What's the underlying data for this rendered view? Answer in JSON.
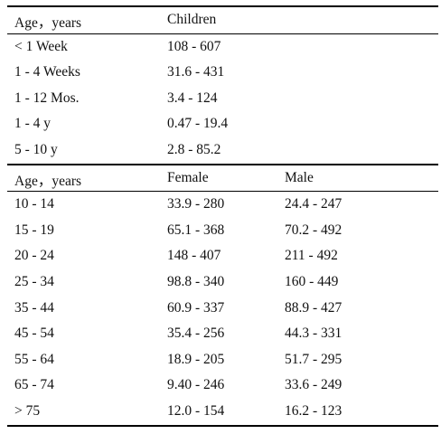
{
  "children_section": {
    "headers": {
      "age": "Age，years",
      "children": "Children"
    },
    "rows": [
      {
        "age": "< 1 Week",
        "children": "108 - 607"
      },
      {
        "age": "1 - 4 Weeks",
        "children": "31.6 - 431"
      },
      {
        "age": "1 - 12 Mos.",
        "children": "3.4 - 124"
      },
      {
        "age": "1 - 4 y",
        "children": "0.47 - 19.4"
      },
      {
        "age": "5 - 10 y",
        "children": "2.8 - 85.2"
      }
    ]
  },
  "adult_section": {
    "headers": {
      "age": "Age，years",
      "female": "Female",
      "male": "Male"
    },
    "rows": [
      {
        "age": "10 - 14",
        "female": "33.9 - 280",
        "male": "24.4 - 247"
      },
      {
        "age": "15 - 19",
        "female": "65.1 - 368",
        "male": "70.2 - 492"
      },
      {
        "age": "20 - 24",
        "female": "148 - 407",
        "male": "211 - 492"
      },
      {
        "age": "25 - 34",
        "female": "98.8 - 340",
        "male": "160 - 449"
      },
      {
        "age": "35 - 44",
        "female": "60.9 - 337",
        "male": "88.9 - 427"
      },
      {
        "age": "45 - 54",
        "female": "35.4 - 256",
        "male": "44.3 - 331"
      },
      {
        "age": "55 - 64",
        "female": "18.9 - 205",
        "male": "51.7 - 295"
      },
      {
        "age": "65 - 74",
        "female": "9.40 - 246",
        "male": "33.6 - 249"
      },
      {
        "age": "> 75",
        "female": "12.0 - 154",
        "male": "16.2 - 123"
      }
    ]
  }
}
